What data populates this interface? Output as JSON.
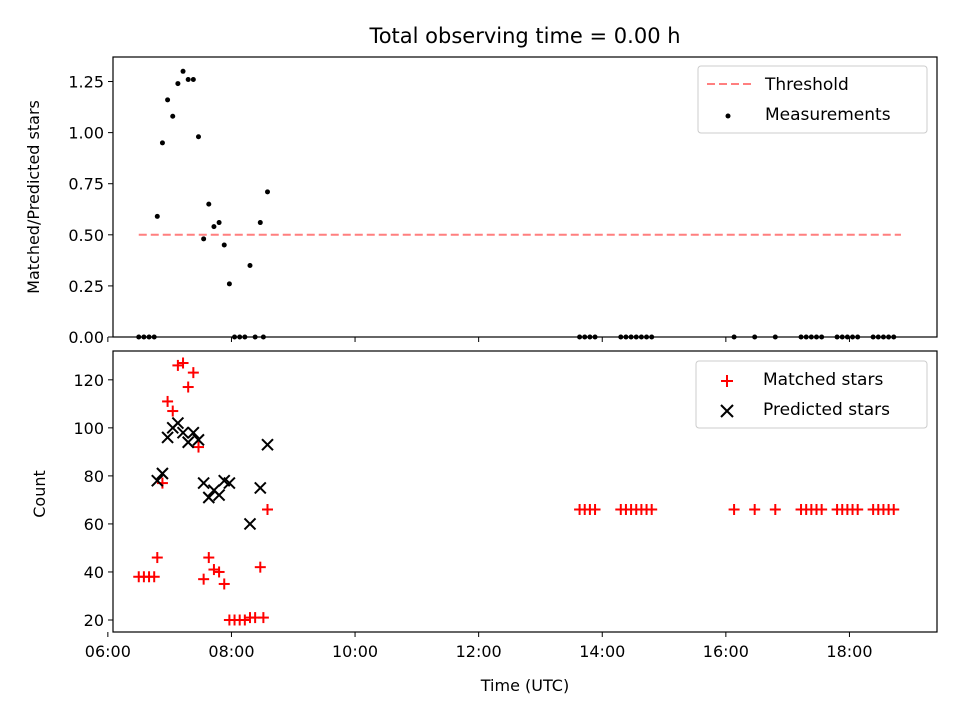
{
  "chart_data": [
    {
      "type": "scatter",
      "title": "Total observing time = 0.00 h",
      "xlabel": "",
      "ylabel": "Matched/Predicted stars",
      "xlim": [
        "06:05",
        "19:25"
      ],
      "ylim": [
        0,
        1.37
      ],
      "yticks": [
        "0.00",
        "0.25",
        "0.50",
        "0.75",
        "1.00",
        "1.25"
      ],
      "legend_position": "top-right",
      "colors": {
        "threshold": "#ff7f7f",
        "measurements": "#000000"
      },
      "threshold": {
        "name": "Threshold",
        "value": 0.5,
        "x": [
          "06:30",
          "18:50"
        ]
      },
      "series": [
        {
          "name": "Measurements",
          "x": [
            "06:30",
            "06:35",
            "06:40",
            "06:45",
            "06:48",
            "06:53",
            "06:58",
            "07:03",
            "07:08",
            "07:13",
            "07:18",
            "07:23",
            "07:28",
            "07:33",
            "07:38",
            "07:43",
            "07:48",
            "07:53",
            "07:58",
            "08:03",
            "08:08",
            "08:13",
            "08:18",
            "08:23",
            "08:28",
            "08:31",
            "08:35",
            "13:38",
            "13:43",
            "13:48",
            "13:53",
            "14:18",
            "14:23",
            "14:28",
            "14:33",
            "14:38",
            "14:43",
            "14:48",
            "16:08",
            "16:28",
            "16:48",
            "17:13",
            "17:18",
            "17:23",
            "17:28",
            "17:33",
            "17:48",
            "17:53",
            "17:58",
            "18:03",
            "18:08",
            "18:23",
            "18:28",
            "18:33",
            "18:38",
            "18:43"
          ],
          "y": [
            0,
            0,
            0,
            0,
            0.59,
            0.95,
            1.16,
            1.08,
            1.24,
            1.3,
            1.26,
            1.26,
            0.98,
            0.48,
            0.65,
            0.54,
            0.56,
            0.45,
            0.26,
            0,
            0,
            0,
            0.35,
            0,
            0.56,
            0,
            0.71,
            0,
            0,
            0,
            0,
            0,
            0,
            0,
            0,
            0,
            0,
            0,
            0,
            0,
            0,
            0,
            0,
            0,
            0,
            0,
            0,
            0,
            0,
            0,
            0,
            0,
            0,
            0,
            0,
            0
          ]
        }
      ]
    },
    {
      "type": "scatter",
      "title": "",
      "xlabel": "Time (UTC)",
      "ylabel": "Count",
      "xlim": [
        "06:05",
        "19:25"
      ],
      "ylim": [
        15,
        132
      ],
      "xticks": [
        "06:00",
        "08:00",
        "10:00",
        "12:00",
        "14:00",
        "16:00",
        "18:00"
      ],
      "yticks": [
        "20",
        "40",
        "60",
        "80",
        "100",
        "120"
      ],
      "legend_position": "top-right",
      "colors": {
        "matched": "#ff0000",
        "predicted": "#000000"
      },
      "series": [
        {
          "name": "Matched stars",
          "x": [
            "06:30",
            "06:35",
            "06:40",
            "06:45",
            "06:48",
            "06:53",
            "06:58",
            "07:03",
            "07:08",
            "07:13",
            "07:18",
            "07:23",
            "07:28",
            "07:33",
            "07:38",
            "07:43",
            "07:48",
            "07:53",
            "07:58",
            "08:03",
            "08:08",
            "08:13",
            "08:18",
            "08:23",
            "08:28",
            "08:31",
            "08:35",
            "13:38",
            "13:43",
            "13:48",
            "13:53",
            "14:18",
            "14:23",
            "14:28",
            "14:33",
            "14:38",
            "14:43",
            "14:48",
            "16:08",
            "16:28",
            "16:48",
            "17:13",
            "17:18",
            "17:23",
            "17:28",
            "17:33",
            "17:48",
            "17:53",
            "17:58",
            "18:03",
            "18:08",
            "18:23",
            "18:28",
            "18:33",
            "18:38",
            "18:43"
          ],
          "y": [
            38,
            38,
            38,
            38,
            46,
            77,
            111,
            107,
            126,
            127,
            117,
            123,
            92,
            37,
            46,
            41,
            40,
            35,
            20,
            20,
            20,
            20,
            21,
            21,
            42,
            21,
            66,
            66,
            66,
            66,
            66,
            66,
            66,
            66,
            66,
            66,
            66,
            66,
            66,
            66,
            66,
            66,
            66,
            66,
            66,
            66,
            66,
            66,
            66,
            66,
            66,
            66,
            66,
            66,
            66,
            66
          ]
        },
        {
          "name": "Predicted stars",
          "x": [
            "06:48",
            "06:53",
            "06:58",
            "07:03",
            "07:08",
            "07:13",
            "07:18",
            "07:23",
            "07:28",
            "07:33",
            "07:38",
            "07:43",
            "07:48",
            "07:53",
            "07:58",
            "08:18",
            "08:28",
            "08:35"
          ],
          "y": [
            78,
            81,
            96,
            100,
            102,
            98,
            94,
            98,
            95,
            77,
            71,
            74,
            72,
            78,
            77,
            60,
            75,
            93
          ]
        }
      ]
    }
  ]
}
